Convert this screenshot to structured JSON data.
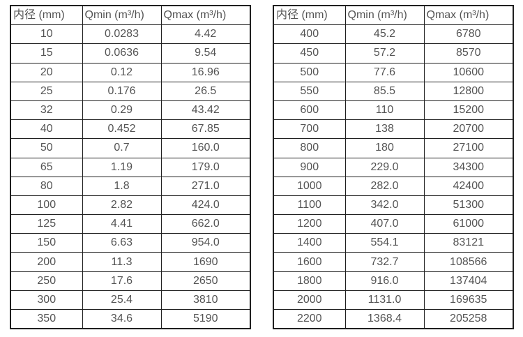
{
  "colors": {
    "background": "#ffffff",
    "border": "#1f1f1f",
    "text": "#545454"
  },
  "tables": [
    {
      "headers": [
        "内径 (mm)",
        "Qmin (m³/h)",
        "Qmax (m³/h)"
      ],
      "rows": [
        [
          "10",
          "0.0283",
          "4.42"
        ],
        [
          "15",
          "0.0636",
          "9.54"
        ],
        [
          "20",
          "0.12",
          "16.96"
        ],
        [
          "25",
          "0.176",
          "26.5"
        ],
        [
          "32",
          "0.29",
          "43.42"
        ],
        [
          "40",
          "0.452",
          "67.85"
        ],
        [
          "50",
          "0.7",
          "160.0"
        ],
        [
          "65",
          "1.19",
          "179.0"
        ],
        [
          "80",
          "1.8",
          "271.0"
        ],
        [
          "100",
          "2.82",
          "424.0"
        ],
        [
          "125",
          "4.41",
          "662.0"
        ],
        [
          "150",
          "6.63",
          "954.0"
        ],
        [
          "200",
          "11.3",
          "1690"
        ],
        [
          "250",
          "17.6",
          "2650"
        ],
        [
          "300",
          "25.4",
          "3810"
        ],
        [
          "350",
          "34.6",
          "5190"
        ]
      ]
    },
    {
      "headers": [
        "内径 (mm)",
        "Qmin (m³/h)",
        "Qmax (m³/h)"
      ],
      "rows": [
        [
          "400",
          "45.2",
          "6780"
        ],
        [
          "450",
          "57.2",
          "8570"
        ],
        [
          "500",
          "77.6",
          "10600"
        ],
        [
          "550",
          "85.5",
          "12800"
        ],
        [
          "600",
          "110",
          "15200"
        ],
        [
          "700",
          "138",
          "20700"
        ],
        [
          "800",
          "180",
          "27100"
        ],
        [
          "900",
          "229.0",
          "34300"
        ],
        [
          "1000",
          "282.0",
          "42400"
        ],
        [
          "1100",
          "342.0",
          "51300"
        ],
        [
          "1200",
          "407.0",
          "61000"
        ],
        [
          "1400",
          "554.1",
          "83121"
        ],
        [
          "1600",
          "732.7",
          "108566"
        ],
        [
          "1800",
          "916.0",
          "137404"
        ],
        [
          "2000",
          "1131.0",
          "169635"
        ],
        [
          "2200",
          "1368.4",
          "205258"
        ]
      ]
    }
  ]
}
